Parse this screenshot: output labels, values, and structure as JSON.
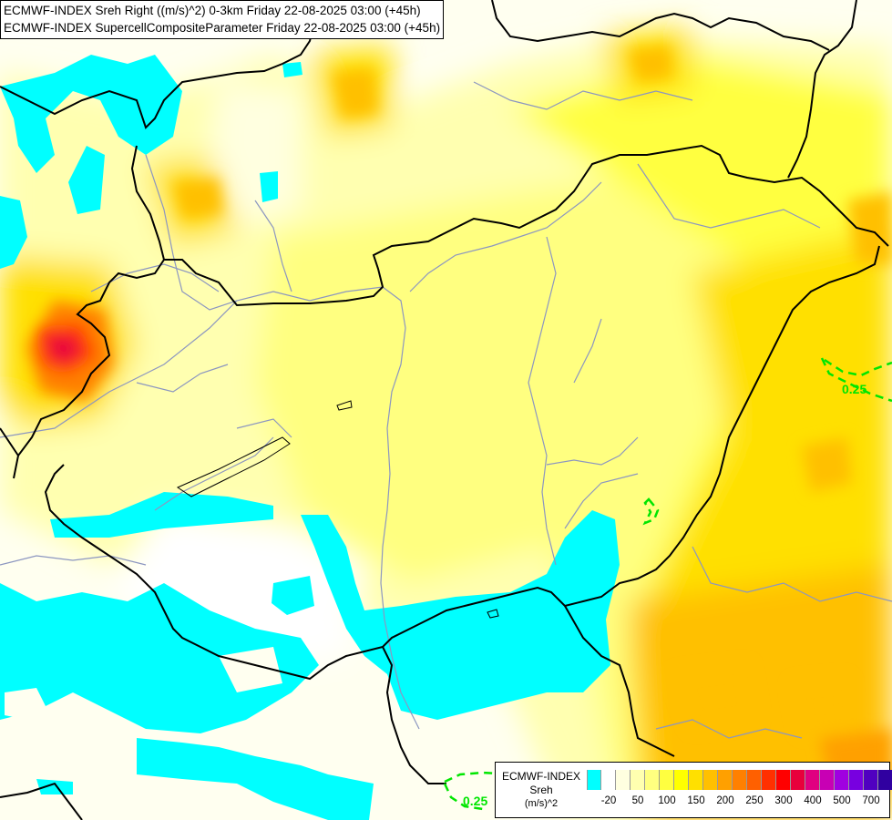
{
  "titles": {
    "line1": "ECMWF-INDEX Sreh Right ((m/s)^2) 0-3km Friday 22-08-2025 03:00 (+45h)",
    "line2": "ECMWF-INDEX SupercellCompositeParameter Friday 22-08-2025 03:00 (+45h)"
  },
  "contour_labels": [
    {
      "id": "east",
      "text": "0.25"
    },
    {
      "id": "south",
      "text": "0.25"
    }
  ],
  "legend": {
    "source": "ECMWF-INDEX",
    "variable": "Sreh",
    "unit": "(m/s)^2",
    "colors": [
      "#00ffff",
      "#ffffff",
      "#ffffe0",
      "#ffffb0",
      "#ffff80",
      "#ffff40",
      "#ffff00",
      "#ffe000",
      "#ffc000",
      "#ffa000",
      "#ff8000",
      "#ff6000",
      "#ff3000",
      "#ff0000",
      "#e8003c",
      "#e00080",
      "#c800b4",
      "#a000e0",
      "#7800e0",
      "#5000c0",
      "#3000a0",
      "#100070"
    ],
    "ticks": [
      "-20",
      "50",
      "100",
      "150",
      "200",
      "250",
      "300",
      "400",
      "500",
      "700"
    ]
  },
  "colors": {
    "background": "#fffff0",
    "low_shear": "#00ffff",
    "country_border": "#000000",
    "river": "#8c96c0",
    "scp_contour": "#00e600"
  }
}
